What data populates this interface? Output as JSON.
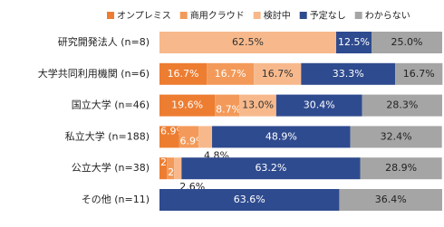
{
  "chart_data": {
    "type": "bar",
    "orientation": "horizontal",
    "stacked": true,
    "categories": [
      "研究開発法人 (n=8)",
      "大学共同利用機関 (n=6)",
      "国立大学 (n=46)",
      "私立大学 (n=188)",
      "公立大学 (n=38)",
      "その他 (n=11)"
    ],
    "xlim": [
      0,
      100
    ],
    "series": [
      {
        "name": "オンプレミス",
        "color": "#ed7d31",
        "values": [
          0,
          16.7,
          19.6,
          6.9,
          2.6,
          0
        ],
        "value_labels": [
          null,
          "16.7%",
          "19.6%",
          "6.9%",
          "2.6%",
          null
        ]
      },
      {
        "name": "商用クラウド",
        "color": "#f39a5a",
        "values": [
          0,
          16.7,
          8.7,
          6.9,
          2.6,
          0
        ],
        "value_labels": [
          null,
          "16.7%",
          "8.7%",
          "6.9%",
          "2.6%",
          null
        ]
      },
      {
        "name": "検討中",
        "color": "#f7b98c",
        "values": [
          62.5,
          16.7,
          13.0,
          4.8,
          2.6,
          0
        ],
        "value_labels": [
          "62.5%",
          "16.7%",
          "13.0%",
          "4.8%",
          "2.6%",
          null
        ]
      },
      {
        "name": "予定なし",
        "color": "#2f4b8f",
        "values": [
          12.5,
          33.3,
          30.4,
          48.9,
          63.2,
          63.6
        ],
        "value_labels": [
          "12.5%",
          "33.3%",
          "30.4%",
          "48.9%",
          "63.2%",
          "63.6%"
        ]
      },
      {
        "name": "わからない",
        "color": "#a5a5a5",
        "values": [
          25.0,
          16.7,
          28.3,
          32.4,
          28.9,
          36.4
        ],
        "value_labels": [
          "25.0%",
          "16.7%",
          "28.3%",
          "32.4%",
          "28.9%",
          "36.4%"
        ]
      }
    ],
    "legend": "top"
  }
}
